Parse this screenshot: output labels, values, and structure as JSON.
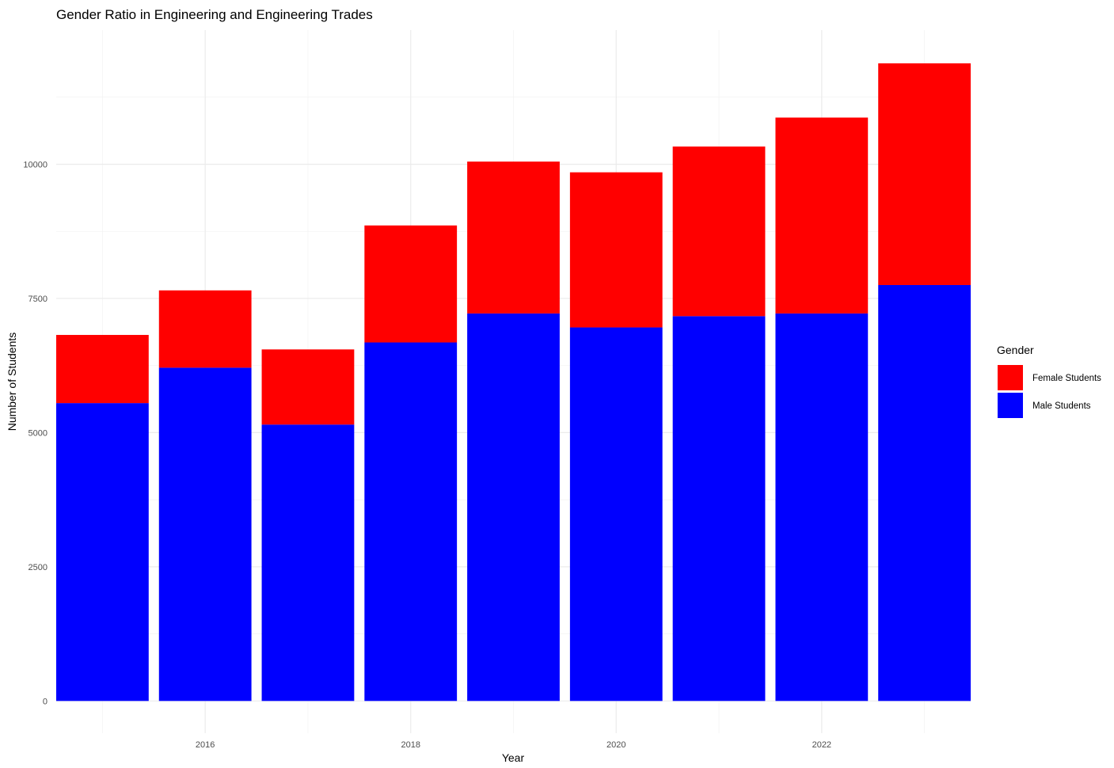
{
  "chart_data": {
    "type": "bar",
    "stacked": true,
    "title": "Gender Ratio in Engineering and Engineering Trades",
    "xlabel": "Year",
    "ylabel": "Number of Students",
    "categories": [
      2015,
      2016,
      2017,
      2018,
      2019,
      2020,
      2021,
      2022,
      2023
    ],
    "x_tick_labels": [
      "2016",
      "2018",
      "2020",
      "2022"
    ],
    "y_tick_labels": [
      "0",
      "2500",
      "5000",
      "7500",
      "10000"
    ],
    "y_ticks": [
      0,
      2500,
      5000,
      7500,
      10000
    ],
    "ylim": [
      -600,
      12500
    ],
    "grid": true,
    "legend": {
      "title": "Gender",
      "position": "right"
    },
    "series": [
      {
        "name": "Male Students",
        "color": "#0000ff",
        "values": [
          5550,
          6210,
          5150,
          6680,
          7220,
          6960,
          7170,
          7220,
          7750
        ]
      },
      {
        "name": "Female Students",
        "color": "#ff0000",
        "values": [
          1270,
          1440,
          1400,
          2180,
          2830,
          2890,
          3160,
          3650,
          4130
        ]
      }
    ],
    "legend_order": [
      "Female Students",
      "Male Students"
    ]
  }
}
